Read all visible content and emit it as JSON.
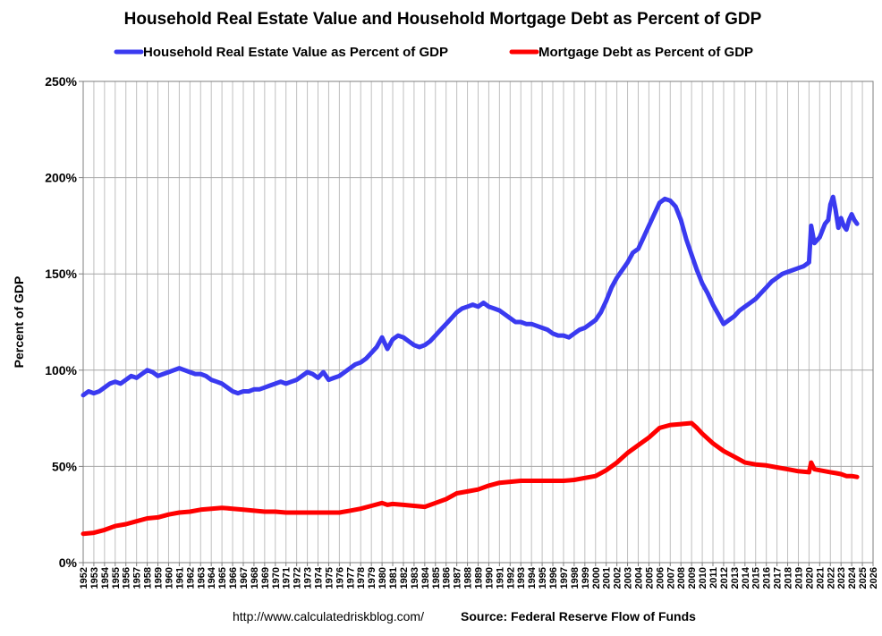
{
  "chart_data": {
    "type": "line",
    "title": "Household Real Estate Value and Household Mortgage Debt as Percent of GDP",
    "ylabel": "Percent of GDP",
    "xlabel": "",
    "xlim": [
      1952,
      2026
    ],
    "ylim": [
      0,
      250
    ],
    "y_ticks": [
      0,
      50,
      100,
      150,
      200,
      250
    ],
    "y_tick_labels": [
      "0%",
      "50%",
      "100%",
      "150%",
      "200%",
      "250%"
    ],
    "x_ticks": [
      1952,
      1953,
      1954,
      1955,
      1956,
      1957,
      1958,
      1959,
      1960,
      1961,
      1962,
      1963,
      1964,
      1965,
      1966,
      1967,
      1968,
      1969,
      1970,
      1971,
      1972,
      1973,
      1974,
      1975,
      1976,
      1977,
      1978,
      1979,
      1980,
      1981,
      1982,
      1983,
      1984,
      1985,
      1986,
      1987,
      1988,
      1989,
      1990,
      1991,
      1992,
      1993,
      1994,
      1995,
      1996,
      1997,
      1998,
      1999,
      2000,
      2001,
      2002,
      2003,
      2004,
      2005,
      2006,
      2007,
      2008,
      2009,
      2010,
      2011,
      2012,
      2013,
      2014,
      2015,
      2016,
      2017,
      2018,
      2019,
      2020,
      2021,
      2022,
      2023,
      2024,
      2025,
      2026
    ],
    "grid": true,
    "legend_position": "top",
    "series": [
      {
        "name": "Household Real Estate Value as Percent of GDP",
        "color": "#3a3af0",
        "points": [
          [
            1952.0,
            87
          ],
          [
            1952.5,
            89
          ],
          [
            1953.0,
            88
          ],
          [
            1953.5,
            89
          ],
          [
            1954.0,
            91
          ],
          [
            1954.5,
            93
          ],
          [
            1955.0,
            94
          ],
          [
            1955.5,
            93
          ],
          [
            1956.0,
            95
          ],
          [
            1956.5,
            97
          ],
          [
            1957.0,
            96
          ],
          [
            1957.5,
            98
          ],
          [
            1958.0,
            100
          ],
          [
            1958.5,
            99
          ],
          [
            1959.0,
            97
          ],
          [
            1959.5,
            98
          ],
          [
            1960.0,
            99
          ],
          [
            1960.5,
            100
          ],
          [
            1961.0,
            101
          ],
          [
            1961.5,
            100
          ],
          [
            1962.0,
            99
          ],
          [
            1962.5,
            98
          ],
          [
            1963.0,
            98
          ],
          [
            1963.5,
            97
          ],
          [
            1964.0,
            95
          ],
          [
            1964.5,
            94
          ],
          [
            1965.0,
            93
          ],
          [
            1965.5,
            91
          ],
          [
            1966.0,
            89
          ],
          [
            1966.5,
            88
          ],
          [
            1967.0,
            89
          ],
          [
            1967.5,
            89
          ],
          [
            1968.0,
            90
          ],
          [
            1968.5,
            90
          ],
          [
            1969.0,
            91
          ],
          [
            1969.5,
            92
          ],
          [
            1970.0,
            93
          ],
          [
            1970.5,
            94
          ],
          [
            1971.0,
            93
          ],
          [
            1971.5,
            94
          ],
          [
            1972.0,
            95
          ],
          [
            1972.5,
            97
          ],
          [
            1973.0,
            99
          ],
          [
            1973.5,
            98
          ],
          [
            1974.0,
            96
          ],
          [
            1974.5,
            99
          ],
          [
            1975.0,
            95
          ],
          [
            1975.5,
            96
          ],
          [
            1976.0,
            97
          ],
          [
            1976.5,
            99
          ],
          [
            1977.0,
            101
          ],
          [
            1977.5,
            103
          ],
          [
            1978.0,
            104
          ],
          [
            1978.5,
            106
          ],
          [
            1979.0,
            109
          ],
          [
            1979.5,
            112
          ],
          [
            1980.0,
            117
          ],
          [
            1980.5,
            111
          ],
          [
            1981.0,
            116
          ],
          [
            1981.5,
            118
          ],
          [
            1982.0,
            117
          ],
          [
            1982.5,
            115
          ],
          [
            1983.0,
            113
          ],
          [
            1983.5,
            112
          ],
          [
            1984.0,
            113
          ],
          [
            1984.5,
            115
          ],
          [
            1985.0,
            118
          ],
          [
            1985.5,
            121
          ],
          [
            1986.0,
            124
          ],
          [
            1986.5,
            127
          ],
          [
            1987.0,
            130
          ],
          [
            1987.5,
            132
          ],
          [
            1988.0,
            133
          ],
          [
            1988.5,
            134
          ],
          [
            1989.0,
            133
          ],
          [
            1989.5,
            135
          ],
          [
            1990.0,
            133
          ],
          [
            1990.5,
            132
          ],
          [
            1991.0,
            131
          ],
          [
            1991.5,
            129
          ],
          [
            1992.0,
            127
          ],
          [
            1992.5,
            125
          ],
          [
            1993.0,
            125
          ],
          [
            1993.5,
            124
          ],
          [
            1994.0,
            124
          ],
          [
            1994.5,
            123
          ],
          [
            1995.0,
            122
          ],
          [
            1995.5,
            121
          ],
          [
            1996.0,
            119
          ],
          [
            1996.5,
            118
          ],
          [
            1997.0,
            118
          ],
          [
            1997.5,
            117
          ],
          [
            1998.0,
            119
          ],
          [
            1998.5,
            121
          ],
          [
            1999.0,
            122
          ],
          [
            1999.5,
            124
          ],
          [
            2000.0,
            126
          ],
          [
            2000.5,
            130
          ],
          [
            2001.0,
            136
          ],
          [
            2001.5,
            143
          ],
          [
            2002.0,
            148
          ],
          [
            2002.5,
            152
          ],
          [
            2003.0,
            156
          ],
          [
            2003.5,
            161
          ],
          [
            2004.0,
            163
          ],
          [
            2004.5,
            169
          ],
          [
            2005.0,
            175
          ],
          [
            2005.5,
            181
          ],
          [
            2006.0,
            187
          ],
          [
            2006.5,
            189
          ],
          [
            2007.0,
            188
          ],
          [
            2007.5,
            185
          ],
          [
            2008.0,
            178
          ],
          [
            2008.5,
            168
          ],
          [
            2009.0,
            160
          ],
          [
            2009.5,
            152
          ],
          [
            2010.0,
            145
          ],
          [
            2010.5,
            140
          ],
          [
            2011.0,
            134
          ],
          [
            2011.5,
            129
          ],
          [
            2012.0,
            124
          ],
          [
            2012.5,
            126
          ],
          [
            2013.0,
            128
          ],
          [
            2013.5,
            131
          ],
          [
            2014.0,
            133
          ],
          [
            2014.5,
            135
          ],
          [
            2015.0,
            137
          ],
          [
            2015.5,
            140
          ],
          [
            2016.0,
            143
          ],
          [
            2016.5,
            146
          ],
          [
            2017.0,
            148
          ],
          [
            2017.5,
            150
          ],
          [
            2018.0,
            151
          ],
          [
            2018.5,
            152
          ],
          [
            2019.0,
            153
          ],
          [
            2019.5,
            154
          ],
          [
            2020.0,
            156
          ],
          [
            2020.2,
            175
          ],
          [
            2020.5,
            166
          ],
          [
            2021.0,
            169
          ],
          [
            2021.5,
            176
          ],
          [
            2021.8,
            178
          ],
          [
            2022.0,
            186
          ],
          [
            2022.25,
            190
          ],
          [
            2022.5,
            183
          ],
          [
            2022.75,
            174
          ],
          [
            2023.0,
            179
          ],
          [
            2023.25,
            175
          ],
          [
            2023.5,
            173
          ],
          [
            2023.75,
            178
          ],
          [
            2024.0,
            181
          ],
          [
            2024.25,
            178
          ],
          [
            2024.5,
            176
          ]
        ]
      },
      {
        "name": "Mortgage Debt as Percent of GDP",
        "color": "#ff0000",
        "points": [
          [
            1952.0,
            15
          ],
          [
            1953.0,
            15.5
          ],
          [
            1954.0,
            17
          ],
          [
            1955.0,
            19
          ],
          [
            1956.0,
            20
          ],
          [
            1957.0,
            21.5
          ],
          [
            1958.0,
            23
          ],
          [
            1959.0,
            23.5
          ],
          [
            1960.0,
            25
          ],
          [
            1961.0,
            26
          ],
          [
            1962.0,
            26.5
          ],
          [
            1963.0,
            27.5
          ],
          [
            1964.0,
            28
          ],
          [
            1965.0,
            28.5
          ],
          [
            1966.0,
            28
          ],
          [
            1967.0,
            27.5
          ],
          [
            1968.0,
            27
          ],
          [
            1969.0,
            26.5
          ],
          [
            1970.0,
            26.5
          ],
          [
            1971.0,
            26
          ],
          [
            1972.0,
            26
          ],
          [
            1973.0,
            26
          ],
          [
            1974.0,
            26
          ],
          [
            1975.0,
            26
          ],
          [
            1976.0,
            26
          ],
          [
            1977.0,
            27
          ],
          [
            1978.0,
            28
          ],
          [
            1979.0,
            29.5
          ],
          [
            1980.0,
            31
          ],
          [
            1980.5,
            30
          ],
          [
            1981.0,
            30.5
          ],
          [
            1982.0,
            30
          ],
          [
            1983.0,
            29.5
          ],
          [
            1984.0,
            29
          ],
          [
            1985.0,
            31
          ],
          [
            1986.0,
            33
          ],
          [
            1987.0,
            36
          ],
          [
            1988.0,
            37
          ],
          [
            1989.0,
            38
          ],
          [
            1990.0,
            40
          ],
          [
            1991.0,
            41.5
          ],
          [
            1992.0,
            42
          ],
          [
            1993.0,
            42.5
          ],
          [
            1994.0,
            42.5
          ],
          [
            1995.0,
            42.5
          ],
          [
            1996.0,
            42.5
          ],
          [
            1997.0,
            42.5
          ],
          [
            1998.0,
            43
          ],
          [
            1999.0,
            44
          ],
          [
            2000.0,
            45
          ],
          [
            2001.0,
            48
          ],
          [
            2002.0,
            52
          ],
          [
            2003.0,
            57
          ],
          [
            2004.0,
            61
          ],
          [
            2005.0,
            65
          ],
          [
            2006.0,
            70
          ],
          [
            2007.0,
            71.5
          ],
          [
            2008.0,
            72
          ],
          [
            2009.0,
            72.5
          ],
          [
            2009.5,
            70
          ],
          [
            2010.0,
            67
          ],
          [
            2011.0,
            62
          ],
          [
            2012.0,
            58
          ],
          [
            2013.0,
            55
          ],
          [
            2014.0,
            52
          ],
          [
            2015.0,
            51
          ],
          [
            2016.0,
            50.5
          ],
          [
            2017.0,
            49.5
          ],
          [
            2018.0,
            48.5
          ],
          [
            2019.0,
            47.5
          ],
          [
            2020.0,
            47
          ],
          [
            2020.2,
            52
          ],
          [
            2020.5,
            48.5
          ],
          [
            2021.0,
            48
          ],
          [
            2021.5,
            47.5
          ],
          [
            2022.0,
            47
          ],
          [
            2022.5,
            46.5
          ],
          [
            2023.0,
            46
          ],
          [
            2023.5,
            45
          ],
          [
            2024.0,
            45
          ],
          [
            2024.5,
            44.5
          ]
        ]
      }
    ]
  },
  "footer": {
    "url": "http://www.calculatedriskblog.com/",
    "source": "Source: Federal Reserve Flow of Funds"
  }
}
